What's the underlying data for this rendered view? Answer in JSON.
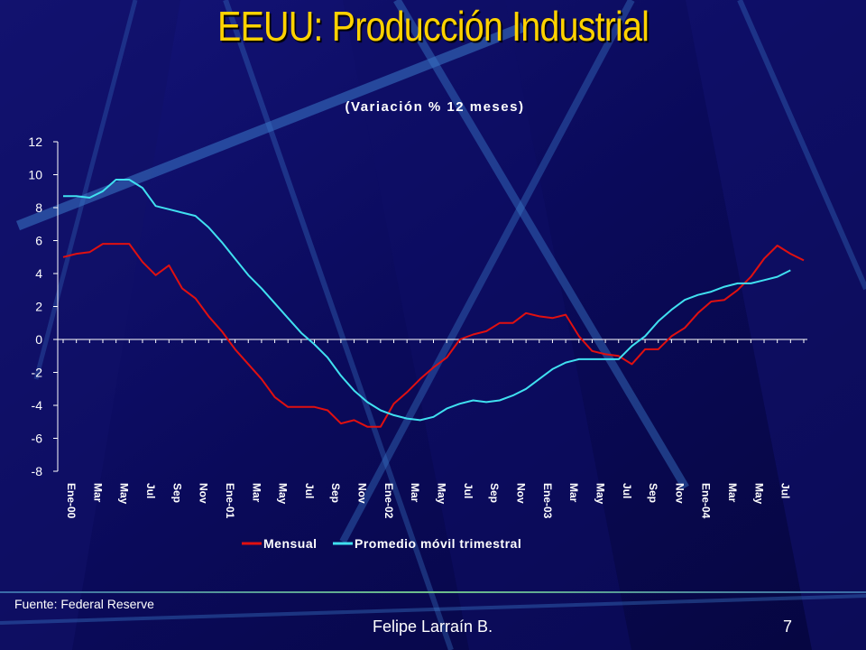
{
  "slide": {
    "title": "EEUU: Producción Industrial",
    "source": "Fuente: Federal Reserve",
    "author": "Felipe Larraín B.",
    "page_number": "7"
  },
  "colors": {
    "background": "#0a0a52",
    "title": "#ffd200",
    "series_mensual": "#e01010",
    "series_promedio": "#40e0f0",
    "text": "#ffffff"
  },
  "chart_data": {
    "type": "line",
    "subtitle": "(Variación % 12 meses)",
    "ylim": [
      -8,
      12
    ],
    "yticks": [
      12,
      10,
      8,
      6,
      4,
      2,
      0,
      -2,
      -4,
      -6,
      -8
    ],
    "grid": false,
    "legend_position": "bottom",
    "x_tick_labels": [
      "Ene-00",
      "Mar",
      "May",
      "Jul",
      "Sep",
      "Nov",
      "Ene-01",
      "Mar",
      "May",
      "Jul",
      "Sep",
      "Nov",
      "Ene-02",
      "Mar",
      "May",
      "Jul",
      "Sep",
      "Nov",
      "Ene-03",
      "Mar",
      "May",
      "Jul",
      "Sep",
      "Nov",
      "Ene-04",
      "Mar",
      "May",
      "Jul"
    ],
    "series": [
      {
        "name": "Mensual",
        "values": [
          5.0,
          5.2,
          5.3,
          5.8,
          5.8,
          5.8,
          4.7,
          3.9,
          4.5,
          3.1,
          2.5,
          1.4,
          0.5,
          -0.6,
          -1.5,
          -2.4,
          -3.5,
          -4.1,
          -4.1,
          -4.1,
          -4.3,
          -5.1,
          -4.9,
          -5.3,
          -5.3,
          -3.9,
          -3.2,
          -2.4,
          -1.7,
          -1.1,
          0.0,
          0.3,
          0.5,
          1.0,
          1.0,
          1.6,
          1.4,
          1.3,
          1.5,
          0.2,
          -0.7,
          -0.9,
          -1.0,
          -1.5,
          -0.6,
          -0.6,
          0.2,
          0.7,
          1.6,
          2.3,
          2.4,
          3.0,
          3.8,
          4.9,
          5.7,
          5.2,
          4.8
        ]
      },
      {
        "name": "Promedio móvil trimestral",
        "values": [
          8.7,
          8.7,
          8.6,
          9.0,
          9.7,
          9.7,
          9.2,
          8.1,
          7.9,
          7.7,
          7.5,
          6.8,
          5.9,
          4.9,
          3.9,
          3.1,
          2.2,
          1.3,
          0.4,
          -0.3,
          -1.1,
          -2.2,
          -3.1,
          -3.8,
          -4.3,
          -4.6,
          -4.8,
          -4.9,
          -4.7,
          -4.2,
          -3.9,
          -3.7,
          -3.8,
          -3.7,
          -3.4,
          -3.0,
          -2.4,
          -1.8,
          -1.4,
          -1.2,
          -1.2,
          -1.2,
          -1.2,
          -0.4,
          0.2,
          1.1,
          1.8,
          2.4,
          2.7,
          2.9,
          3.2,
          3.4,
          3.4,
          3.6,
          3.8,
          4.2
        ]
      }
    ]
  }
}
